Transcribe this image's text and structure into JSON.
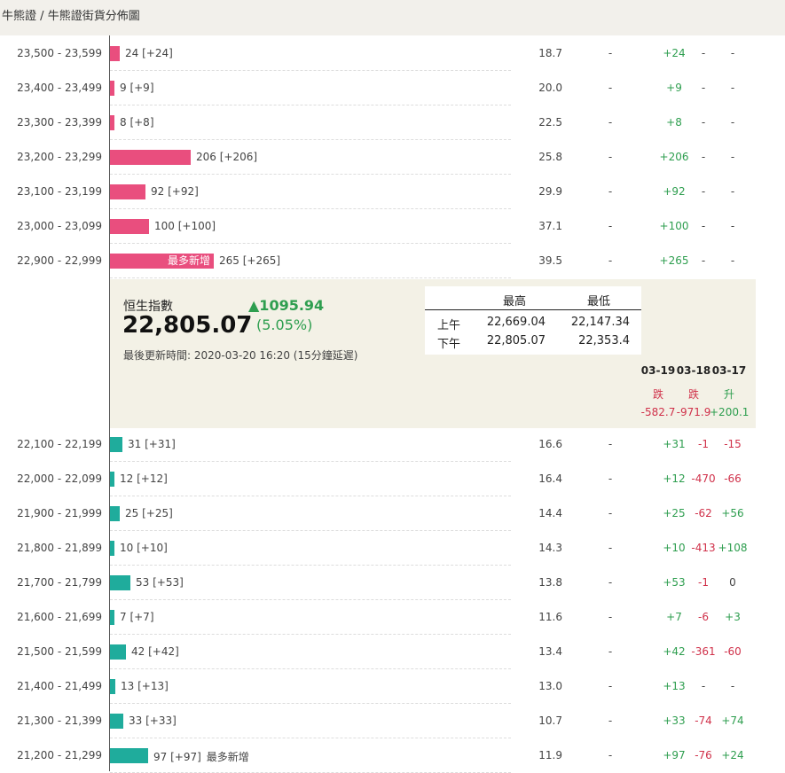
{
  "breadcrumb": {
    "root": "牛熊證",
    "sep": "/",
    "current": "牛熊證街貨分佈圖"
  },
  "colors": {
    "bull": "#e94e7e",
    "bear": "#1fac9c",
    "up": "#2e9e4f",
    "down": "#d0314a",
    "panel": "#f3f1e6"
  },
  "bar_scale_note": "counts",
  "bull_rows": [
    {
      "range": "23,500 - 23,599",
      "count": 24,
      "count_text": "24 [+24]",
      "ratio": "18.7",
      "col2": "-",
      "d1": "+24",
      "d2": "-",
      "d3": "-"
    },
    {
      "range": "23,400 - 23,499",
      "count": 9,
      "count_text": "9 [+9]",
      "ratio": "20.0",
      "col2": "-",
      "d1": "+9",
      "d2": "-",
      "d3": "-"
    },
    {
      "range": "23,300 - 23,399",
      "count": 8,
      "count_text": "8 [+8]",
      "ratio": "22.5",
      "col2": "-",
      "d1": "+8",
      "d2": "-",
      "d3": "-"
    },
    {
      "range": "23,200 - 23,299",
      "count": 206,
      "count_text": "206 [+206]",
      "ratio": "25.8",
      "col2": "-",
      "d1": "+206",
      "d2": "-",
      "d3": "-"
    },
    {
      "range": "23,100 - 23,199",
      "count": 92,
      "count_text": "92 [+92]",
      "ratio": "29.9",
      "col2": "-",
      "d1": "+92",
      "d2": "-",
      "d3": "-"
    },
    {
      "range": "23,000 - 23,099",
      "count": 100,
      "count_text": "100 [+100]",
      "ratio": "37.1",
      "col2": "-",
      "d1": "+100",
      "d2": "-",
      "d3": "-"
    },
    {
      "range": "22,900 - 22,999",
      "count": 265,
      "count_text": "265 [+265]",
      "ratio": "39.5",
      "col2": "-",
      "d1": "+265",
      "d2": "-",
      "d3": "-",
      "tag": "最多新增"
    }
  ],
  "index_panel": {
    "name": "恒生指數",
    "value": "22,805.07",
    "change": "▲1095.94",
    "change_pct": "(5.05%)",
    "updated": "最後更新時間: 2020-03-20 16:20 (15分鐘延遲)",
    "hl_header_high": "最高",
    "hl_header_low": "最低",
    "hl_rows": [
      {
        "label": "上午",
        "high": "22,669.04",
        "low": "22,147.34"
      },
      {
        "label": "下午",
        "high": "22,805.07",
        "low": "22,353.4"
      }
    ],
    "days": [
      {
        "date": "03-19",
        "dir": "跌",
        "val": "-582.7"
      },
      {
        "date": "03-18",
        "dir": "跌",
        "val": "-971.9"
      },
      {
        "date": "03-17",
        "dir": "升",
        "val": "+200.1"
      }
    ]
  },
  "bear_rows": [
    {
      "range": "22,100 - 22,199",
      "count": 31,
      "count_text": "31 [+31]",
      "ratio": "16.6",
      "col2": "-",
      "d1": "+31",
      "d2": "-1",
      "d3": "-15"
    },
    {
      "range": "22,000 - 22,099",
      "count": 12,
      "count_text": "12 [+12]",
      "ratio": "16.4",
      "col2": "-",
      "d1": "+12",
      "d2": "-470",
      "d3": "-66"
    },
    {
      "range": "21,900 - 21,999",
      "count": 25,
      "count_text": "25 [+25]",
      "ratio": "14.4",
      "col2": "-",
      "d1": "+25",
      "d2": "-62",
      "d3": "+56"
    },
    {
      "range": "21,800 - 21,899",
      "count": 10,
      "count_text": "10 [+10]",
      "ratio": "14.3",
      "col2": "-",
      "d1": "+10",
      "d2": "-413",
      "d3": "+108"
    },
    {
      "range": "21,700 - 21,799",
      "count": 53,
      "count_text": "53 [+53]",
      "ratio": "13.8",
      "col2": "-",
      "d1": "+53",
      "d2": "-1",
      "d3": "0"
    },
    {
      "range": "21,600 - 21,699",
      "count": 7,
      "count_text": "7 [+7]",
      "ratio": "11.6",
      "col2": "-",
      "d1": "+7",
      "d2": "-6",
      "d3": "+3"
    },
    {
      "range": "21,500 - 21,599",
      "count": 42,
      "count_text": "42 [+42]",
      "ratio": "13.4",
      "col2": "-",
      "d1": "+42",
      "d2": "-361",
      "d3": "-60"
    },
    {
      "range": "21,400 - 21,499",
      "count": 13,
      "count_text": "13 [+13]",
      "ratio": "13.0",
      "col2": "-",
      "d1": "+13",
      "d2": "-",
      "d3": "-"
    },
    {
      "range": "21,300 - 21,399",
      "count": 33,
      "count_text": "33 [+33]",
      "ratio": "10.7",
      "col2": "-",
      "d1": "+33",
      "d2": "-74",
      "d3": "+74"
    },
    {
      "range": "21,200 - 21,299",
      "count": 97,
      "count_text": "97 [+97]",
      "ratio": "11.9",
      "col2": "-",
      "d1": "+97",
      "d2": "-76",
      "d3": "+24",
      "tail": "最多新增"
    }
  ]
}
